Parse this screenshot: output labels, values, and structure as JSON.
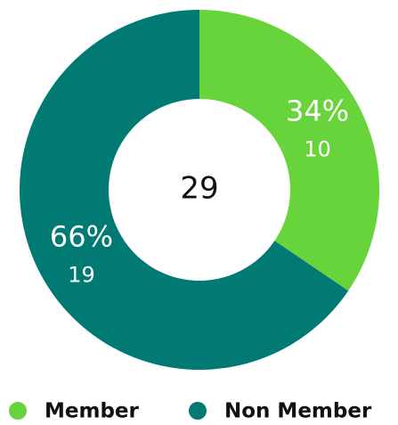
{
  "chart_data": {
    "type": "donut",
    "categories": [
      "Member",
      "Non Member"
    ],
    "values": [
      10,
      19
    ],
    "percent_labels": [
      "34%",
      "66%"
    ],
    "total": 29,
    "colors": [
      "#66d43a",
      "#007a72"
    ],
    "legend": "bottom"
  }
}
